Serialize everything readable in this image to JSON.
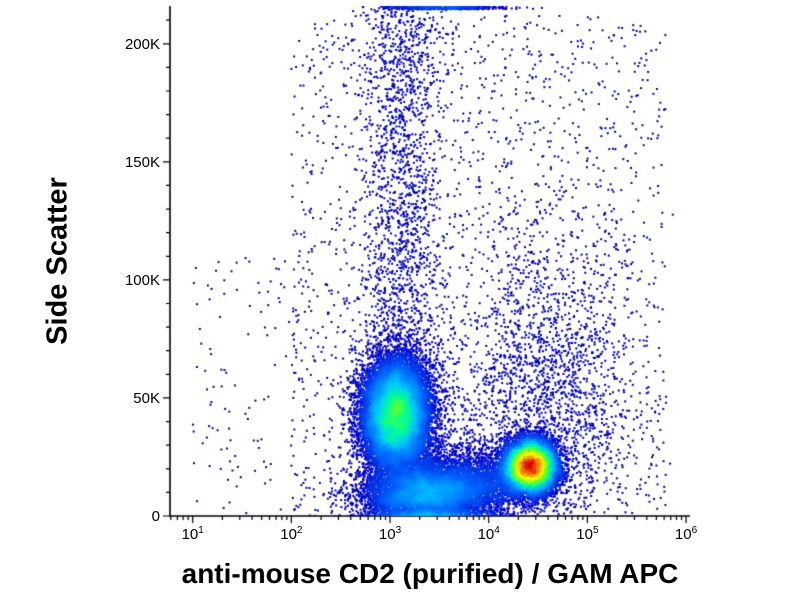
{
  "chart_data": {
    "type": "scatter",
    "subtype": "flow-cytometry-density-dot-plot",
    "title": "",
    "xlabel": "anti-mouse CD2 (purified) / GAM APC",
    "ylabel": "Side Scatter",
    "x_scale": "log10",
    "y_scale": "linear",
    "x_range_log10": [
      0.77,
      6.04
    ],
    "y_range": [
      0,
      216000
    ],
    "grid": false,
    "legend": false,
    "x_ticks": [
      {
        "log10": 1,
        "base": "10",
        "exp": "1"
      },
      {
        "log10": 2,
        "base": "10",
        "exp": "2"
      },
      {
        "log10": 3,
        "base": "10",
        "exp": "3"
      },
      {
        "log10": 4,
        "base": "10",
        "exp": "4"
      },
      {
        "log10": 5,
        "base": "10",
        "exp": "5"
      },
      {
        "log10": 6,
        "base": "10",
        "exp": "6"
      }
    ],
    "y_ticks": [
      {
        "value": 0,
        "label": "0"
      },
      {
        "value": 50000,
        "label": "50K"
      },
      {
        "value": 100000,
        "label": "100K"
      },
      {
        "value": 150000,
        "label": "150K"
      },
      {
        "value": 200000,
        "label": "200K"
      }
    ],
    "y_minor_tick_step": 10000,
    "colormap": "jet-like-density",
    "colormap_stops": [
      {
        "t": 0.0,
        "color": "#000080"
      },
      {
        "t": 0.14,
        "color": "#0000CC"
      },
      {
        "t": 0.3,
        "color": "#0064FF"
      },
      {
        "t": 0.45,
        "color": "#00C8FF"
      },
      {
        "t": 0.55,
        "color": "#00FF96"
      },
      {
        "t": 0.63,
        "color": "#64FF32"
      },
      {
        "t": 0.72,
        "color": "#C8FF00"
      },
      {
        "t": 0.8,
        "color": "#FFFF00"
      },
      {
        "t": 0.88,
        "color": "#FF9600"
      },
      {
        "t": 1.0,
        "color": "#D20000"
      }
    ],
    "populations": [
      {
        "name": "cd2-negative-cluster",
        "count": 16000,
        "x": {
          "dist": "normal",
          "mean": 3.06,
          "sd": 0.17
        },
        "y": {
          "dist": "normal",
          "mean": 43000,
          "sd": 11500
        }
      },
      {
        "name": "cd2-positive-cluster",
        "count": 15000,
        "x": {
          "dist": "normal",
          "mean": 4.42,
          "sd": 0.125
        },
        "y": {
          "dist": "normal",
          "mean": 21000,
          "sd": 5200
        }
      },
      {
        "name": "low-ssc-debris-band",
        "count": 6000,
        "clamp_y": true,
        "x": {
          "dist": "normal",
          "mean": 3.35,
          "sd": 0.32
        },
        "y": {
          "dist": "normal",
          "mean": 9000,
          "sd": 6000
        }
      },
      {
        "name": "bridge-between-clusters",
        "count": 3500,
        "clamp_y": true,
        "x": {
          "dist": "normal",
          "mean": 3.75,
          "sd": 0.35
        },
        "y": {
          "dist": "normal",
          "mean": 14000,
          "sd": 7500
        }
      },
      {
        "name": "vertical-smear-plume",
        "count": 2600,
        "x": {
          "dist": "normal",
          "mean": 3.12,
          "sd": 0.22
        },
        "y": {
          "dist": "power",
          "min": 0,
          "max": 216000,
          "power": 1.3
        }
      },
      {
        "name": "cd2-positive-halo",
        "count": 2200,
        "x": {
          "dist": "normal",
          "mean": 4.55,
          "sd": 0.45
        },
        "y": {
          "dist": "normal",
          "mean": 48000,
          "sd": 38000
        }
      },
      {
        "name": "diffuse-background",
        "count": 1700,
        "x": {
          "dist": "uniform",
          "min": 2.0,
          "max": 5.8
        },
        "y": {
          "dist": "uniform",
          "min": 0,
          "max": 212000
        }
      },
      {
        "name": "sparse-left-events",
        "count": 120,
        "x": {
          "dist": "uniform",
          "min": 1.0,
          "max": 2.2
        },
        "y": {
          "dist": "uniform",
          "min": 0,
          "max": 110000
        }
      },
      {
        "name": "top-edge-pileup",
        "count": 480,
        "x": {
          "dist": "normal",
          "mean": 3.55,
          "sd": 0.3
        },
        "y": {
          "dist": "uniform",
          "min": 214600,
          "max": 215900
        }
      }
    ]
  }
}
